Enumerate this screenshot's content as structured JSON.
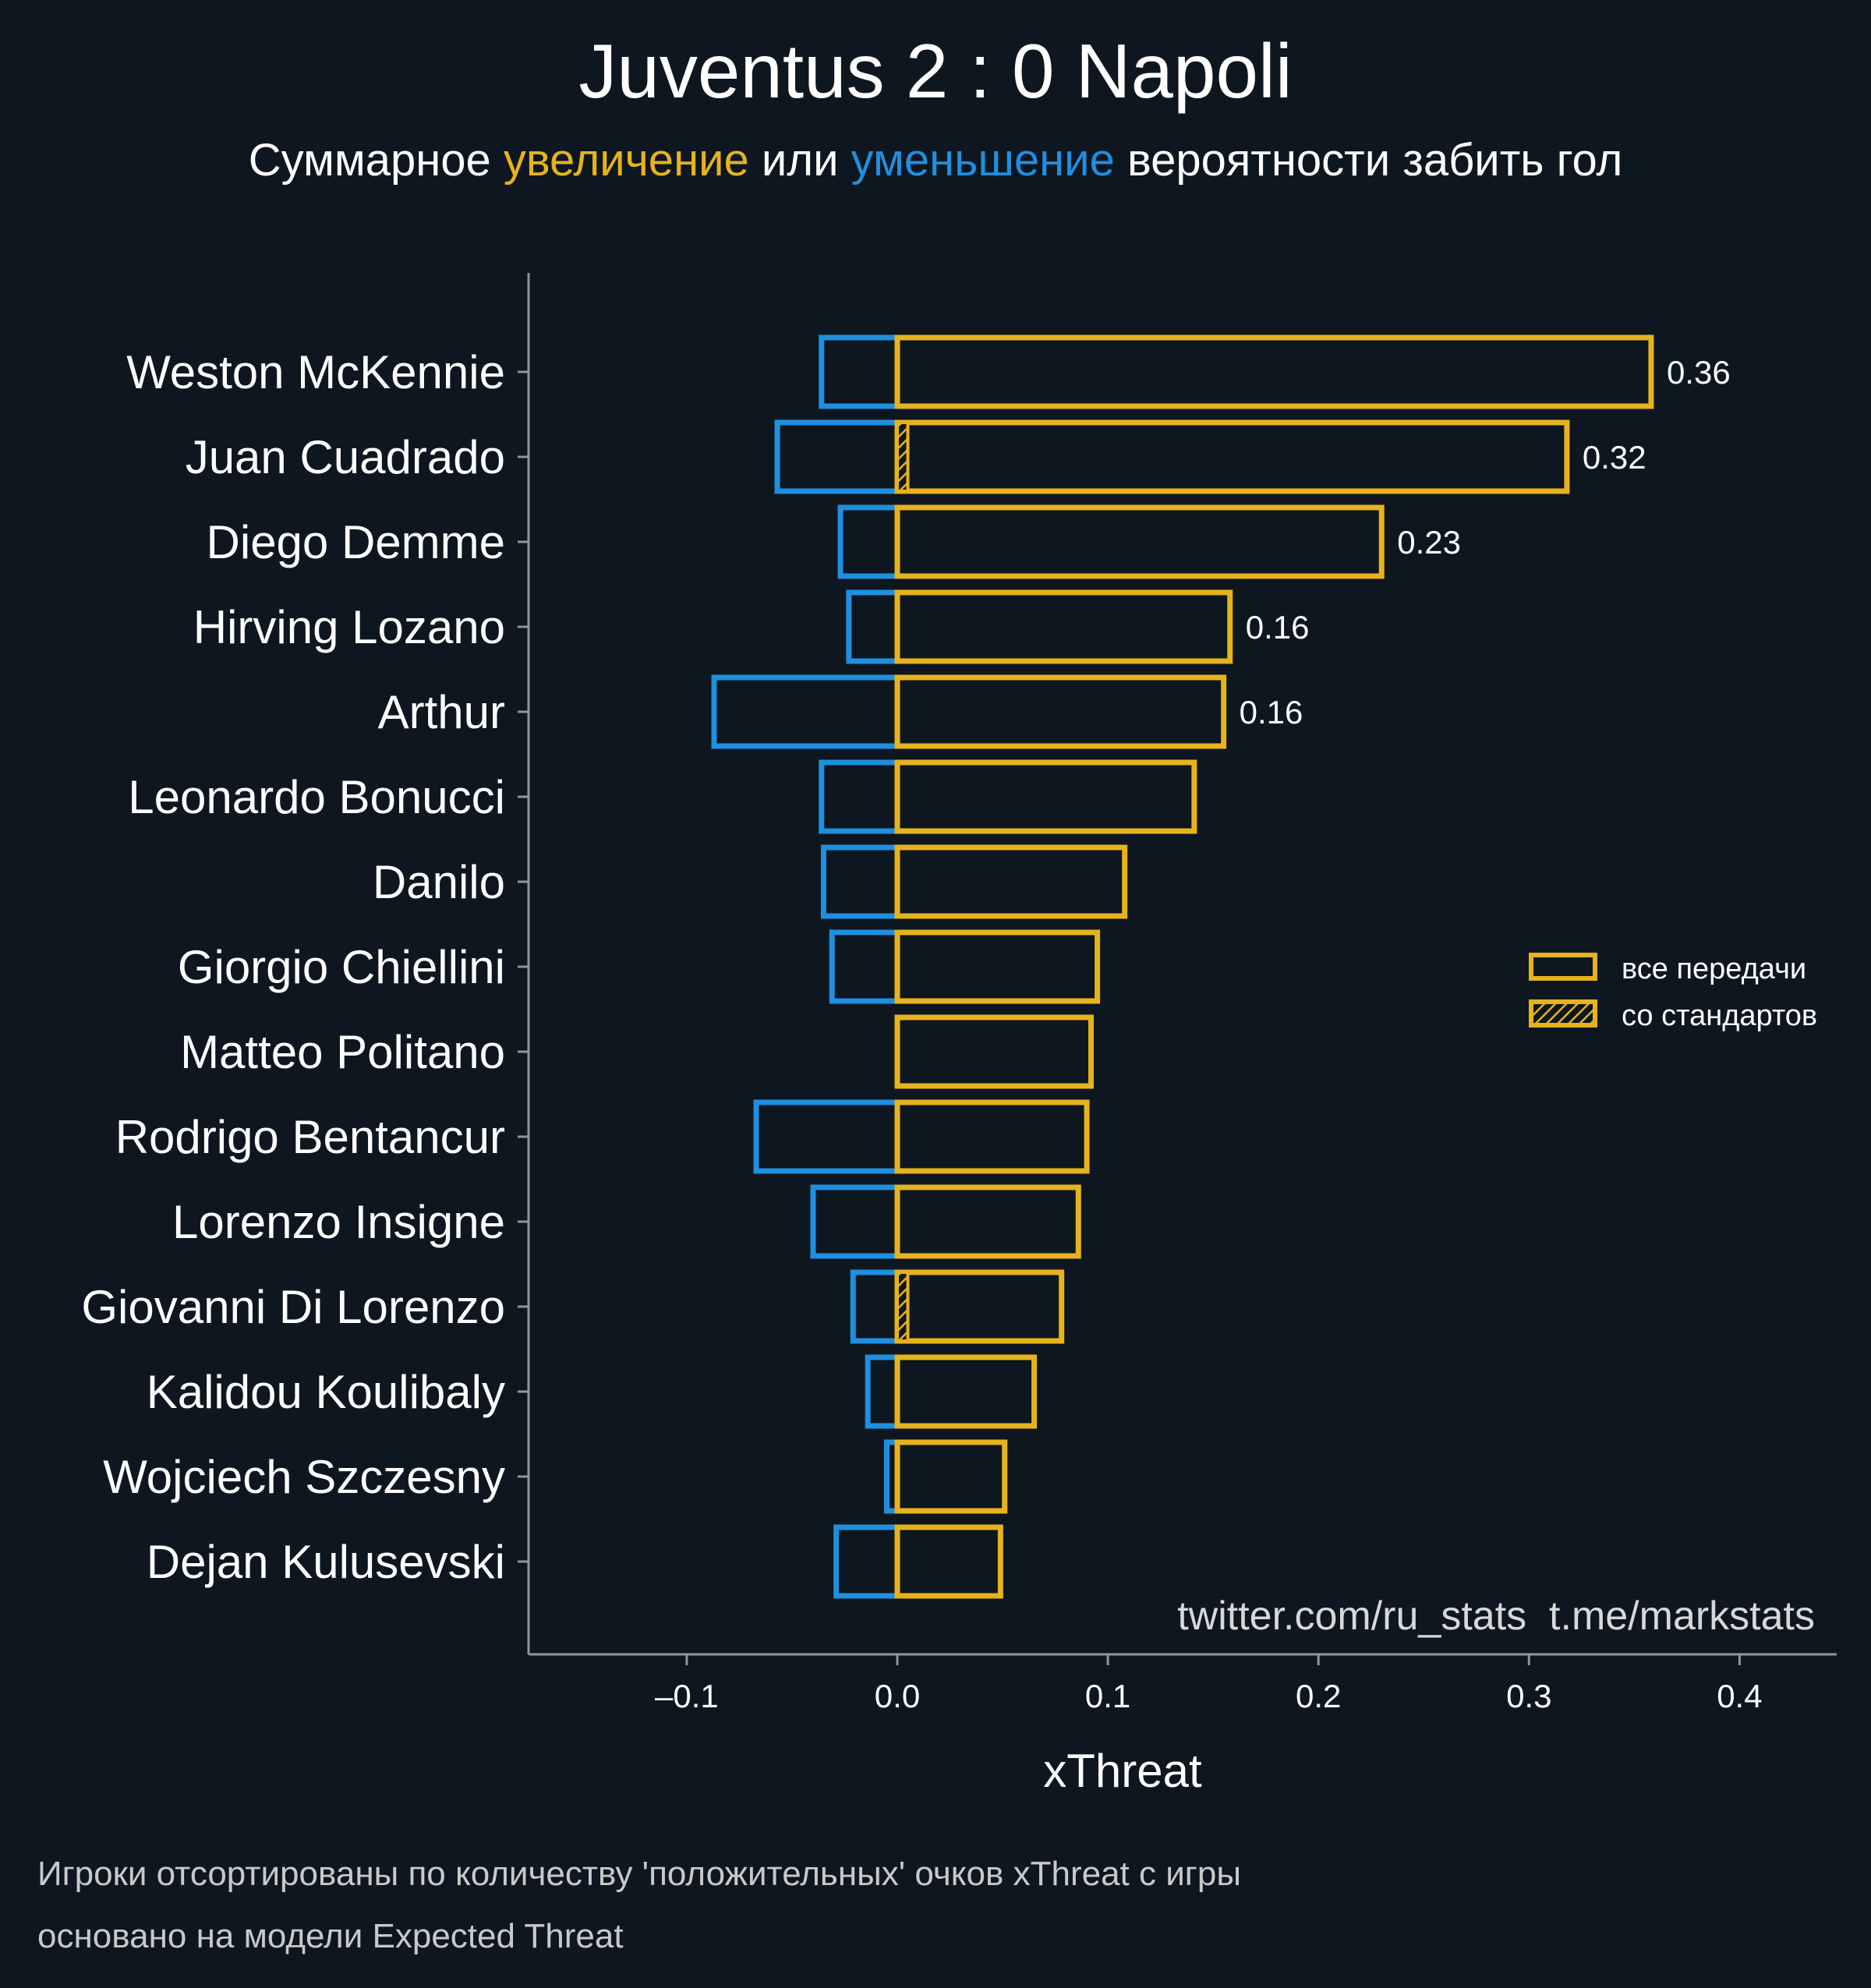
{
  "chart_data": {
    "type": "bar",
    "orientation": "horizontal",
    "title": "Juventus 2 : 0 Napoli",
    "subtitle": {
      "prefix": "Суммарное ",
      "increase_word": "увеличение",
      "middle": " или ",
      "decrease_word": "уменьшение",
      "suffix": " вероятности забить гол"
    },
    "xlabel": "xThreat",
    "xlim": [
      -0.175,
      0.445
    ],
    "xticks": [
      -0.1,
      0.0,
      0.1,
      0.2,
      0.3,
      0.4
    ],
    "xtick_labels": [
      "–0.1",
      "0.0",
      "0.1",
      "0.2",
      "0.3",
      "0.4"
    ],
    "categories": [
      "Weston McKennie",
      "Juan Cuadrado",
      "Diego Demme",
      "Hirving Lozano",
      "Arthur",
      "Leonardo Bonucci",
      "Danilo",
      "Giorgio Chiellini",
      "Matteo Politano",
      "Rodrigo Bentancur",
      "Lorenzo Insigne",
      "Giovanni Di Lorenzo",
      "Kalidou Koulibaly",
      "Wojciech Szczesny",
      "Dejan Kulusevski"
    ],
    "series": [
      {
        "name": "positive",
        "color": "#e7b31d",
        "values": [
          0.358,
          0.318,
          0.23,
          0.158,
          0.155,
          0.141,
          0.108,
          0.095,
          0.092,
          0.09,
          0.086,
          0.078,
          0.065,
          0.051,
          0.049
        ]
      },
      {
        "name": "negative",
        "color": "#1f8fe0",
        "values": [
          -0.036,
          -0.057,
          -0.027,
          -0.023,
          -0.087,
          -0.036,
          -0.035,
          -0.031,
          0.0,
          -0.067,
          -0.04,
          -0.021,
          -0.014,
          -0.005,
          -0.029
        ]
      },
      {
        "name": "set_pieces",
        "color": "#e7b31d",
        "values": [
          0.0,
          0.005,
          0.0,
          0.0,
          0.0,
          0.0,
          0.0,
          0.0,
          0.0,
          0.0,
          0.0,
          0.005,
          0.0,
          0.0,
          0.0
        ]
      }
    ],
    "value_labels": [
      "0.36",
      "0.32",
      "0.23",
      "0.16",
      "0.16"
    ],
    "legend": {
      "position": "right",
      "items": [
        {
          "label": "все передачи",
          "style": "outline"
        },
        {
          "label": "со стандартов",
          "style": "hatched"
        }
      ]
    },
    "watermark": "twitter.com/ru_stats  t.me/markstats",
    "footnotes": [
      "Игроки отсортированы по количеству 'положительных' очков xThreat с игры",
      "основано на модели Expected Threat"
    ]
  },
  "colors": {
    "background": "#0e1720",
    "increase": "#e7b31d",
    "decrease": "#1f8fe0",
    "axis": "#8a9a9a",
    "text": "#ffffff"
  }
}
